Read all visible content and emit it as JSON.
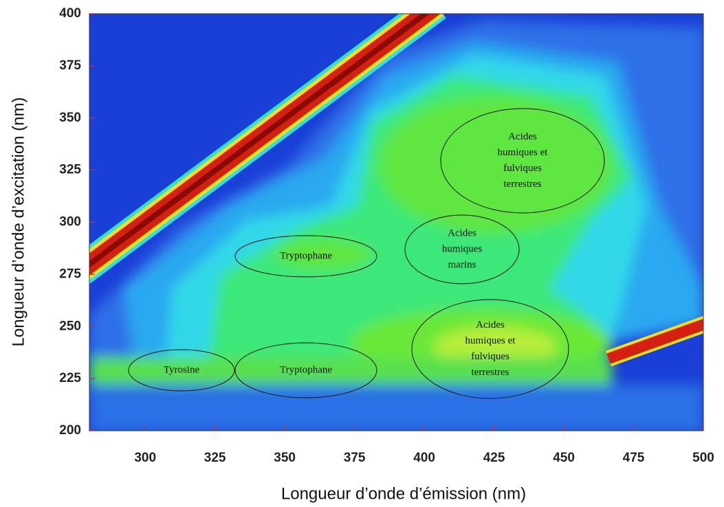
{
  "chart_data": {
    "type": "contour",
    "x_label": "Longueur d’onde d’émission (nm)",
    "y_label": "Longueur d’onde d’excitation (nm)",
    "xlim": [
      280,
      500
    ],
    "xticks": [
      300,
      325,
      350,
      375,
      400,
      425,
      450,
      475,
      500
    ],
    "ylim": [
      200,
      400
    ],
    "yticks": [
      200,
      225,
      250,
      275,
      300,
      325,
      350,
      375,
      400
    ],
    "annotations": [
      {
        "lines": [
          "Tryptophane"
        ]
      },
      {
        "lines": [
          "Acides",
          "humiques",
          "marins"
        ]
      },
      {
        "lines": [
          "Acides",
          "humiques et",
          "fulviques",
          "terrestres"
        ]
      },
      {
        "lines": [
          "Acides",
          "humiques et",
          "fulviques",
          "terrestres"
        ]
      },
      {
        "lines": [
          "Tyrosine"
        ]
      },
      {
        "lines": [
          "Tryptophane"
        ]
      }
    ]
  }
}
